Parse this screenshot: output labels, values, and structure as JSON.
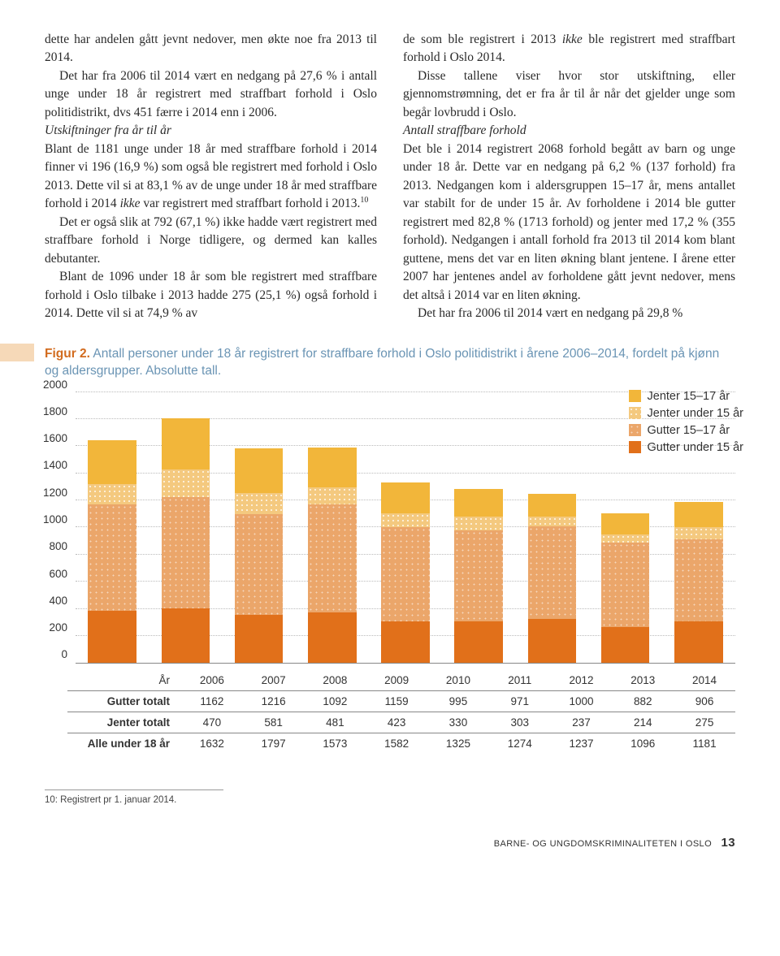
{
  "text": {
    "col1": {
      "p1": "dette har andelen gått jevnt nedover, men økte noe fra 2013 til 2014.",
      "p2": "Det har fra 2006 til 2014 vært en nedgang på 27,6 % i antall unge under 18 år registrert med straffbart forhold i Oslo politidistrikt, dvs 451 færre i 2014 enn i 2006.",
      "h1": "Utskiftninger fra år til år",
      "p3a": "Blant de 1181 unge under 18 år med straffbare forhold i 2014 finner vi 196 (16,9 %) som også ble registrert med forhold i Oslo 2013. Dette vil si at 83,1 % av de unge under 18 år med straffbare forhold i 2014 ",
      "p3b": "ikke",
      "p3c": " var registrert med straffbart forhold i 2013.",
      "sup": "10",
      "p4": "Det er også slik at 792 (67,1 %) ikke hadde vært registrert med straffbare forhold i Norge tidligere, og dermed kan kalles debutanter.",
      "p5": "Blant de 1096 under 18 år som ble registrert med straffbare forhold i Oslo tilbake i 2013 hadde 275 (25,1 %) også forhold i 2014. Dette vil si at 74,9 % av"
    },
    "col2": {
      "p1a": "de som ble registrert i 2013 ",
      "p1b": "ikke",
      "p1c": " ble registrert med straffbart forhold i Oslo 2014.",
      "p2": "Disse tallene viser hvor stor utskiftning, eller gjennomstrømning, det er fra år til år når det gjelder unge som begår lovbrudd i Oslo.",
      "h1": "Antall straffbare forhold",
      "p3": "Det ble i 2014 registrert 2068 forhold begått av barn og unge under 18 år. Dette var en nedgang på 6,2 % (137 forhold) fra 2013. Nedgangen kom i aldersgruppen 15–17 år, mens antallet var stabilt for de under 15 år. Av forholdene i 2014 ble gutter registrert med 82,8 % (1713 forhold) og jenter med 17,2 % (355 forhold). Nedgangen i antall forhold fra 2013 til 2014 kom blant guttene, mens det var en liten økning blant jentene. I årene etter 2007 har jentenes andel av forholdene gått jevnt nedover, mens det altså i 2014 var en liten økning.",
      "p4": "Det har fra 2006 til 2014 vært en nedgang på 29,8 %"
    }
  },
  "figure": {
    "label": "Figur 2.",
    "caption": " Antall personer under 18 år registrert for straffbare forhold i Oslo politidistrikt i årene 2006–2014, fordelt på kjønn og aldersgrupper. Absolutte tall.",
    "chart": {
      "ymax": 2000,
      "ytick_step": 200,
      "yticks": [
        0,
        200,
        400,
        600,
        800,
        1000,
        1200,
        1400,
        1600,
        1800,
        2000
      ],
      "years": [
        "2006",
        "2007",
        "2008",
        "2009",
        "2010",
        "2011",
        "2012",
        "2013",
        "2014"
      ],
      "series": [
        {
          "key": "gu15",
          "label": "Gutter under 15 år",
          "color": "#e1701a"
        },
        {
          "key": "g1517",
          "label": "Gutter 15–17 år",
          "color": "#eba66a"
        },
        {
          "key": "ju15",
          "label": "Jenter under 15 år",
          "color": "#f4c97f"
        },
        {
          "key": "j1517",
          "label": "Jenter 15–17 år",
          "color": "#f2b63a"
        }
      ],
      "legend_order": [
        "j1517",
        "ju15",
        "g1517",
        "gu15"
      ],
      "data": {
        "gu15": [
          380,
          400,
          350,
          370,
          300,
          300,
          320,
          260,
          300
        ],
        "g1517": [
          782,
          816,
          742,
          789,
          695,
          671,
          680,
          622,
          606
        ],
        "ju15": [
          150,
          200,
          150,
          130,
          100,
          100,
          70,
          60,
          90
        ],
        "j1517": [
          320,
          381,
          331,
          293,
          230,
          203,
          167,
          154,
          185
        ]
      },
      "patterns": {
        "ju15": "dots-light",
        "g1517": "dots-mid"
      }
    },
    "table": {
      "row_year_label": "År",
      "rows": [
        {
          "label": "Gutter totalt",
          "vals": [
            1162,
            1216,
            1092,
            1159,
            995,
            971,
            1000,
            882,
            906
          ]
        },
        {
          "label": "Jenter totalt",
          "vals": [
            470,
            581,
            481,
            423,
            330,
            303,
            237,
            214,
            275
          ]
        },
        {
          "label": "Alle under 18 år",
          "vals": [
            1632,
            1797,
            1573,
            1582,
            1325,
            1274,
            1237,
            1096,
            1181
          ]
        }
      ]
    }
  },
  "footnote": "10:  Registrert pr 1. januar 2014.",
  "footer": {
    "title": "BARNE- OG UNGDOMSKRIMINALITETEN I OSLO",
    "page": "13"
  }
}
